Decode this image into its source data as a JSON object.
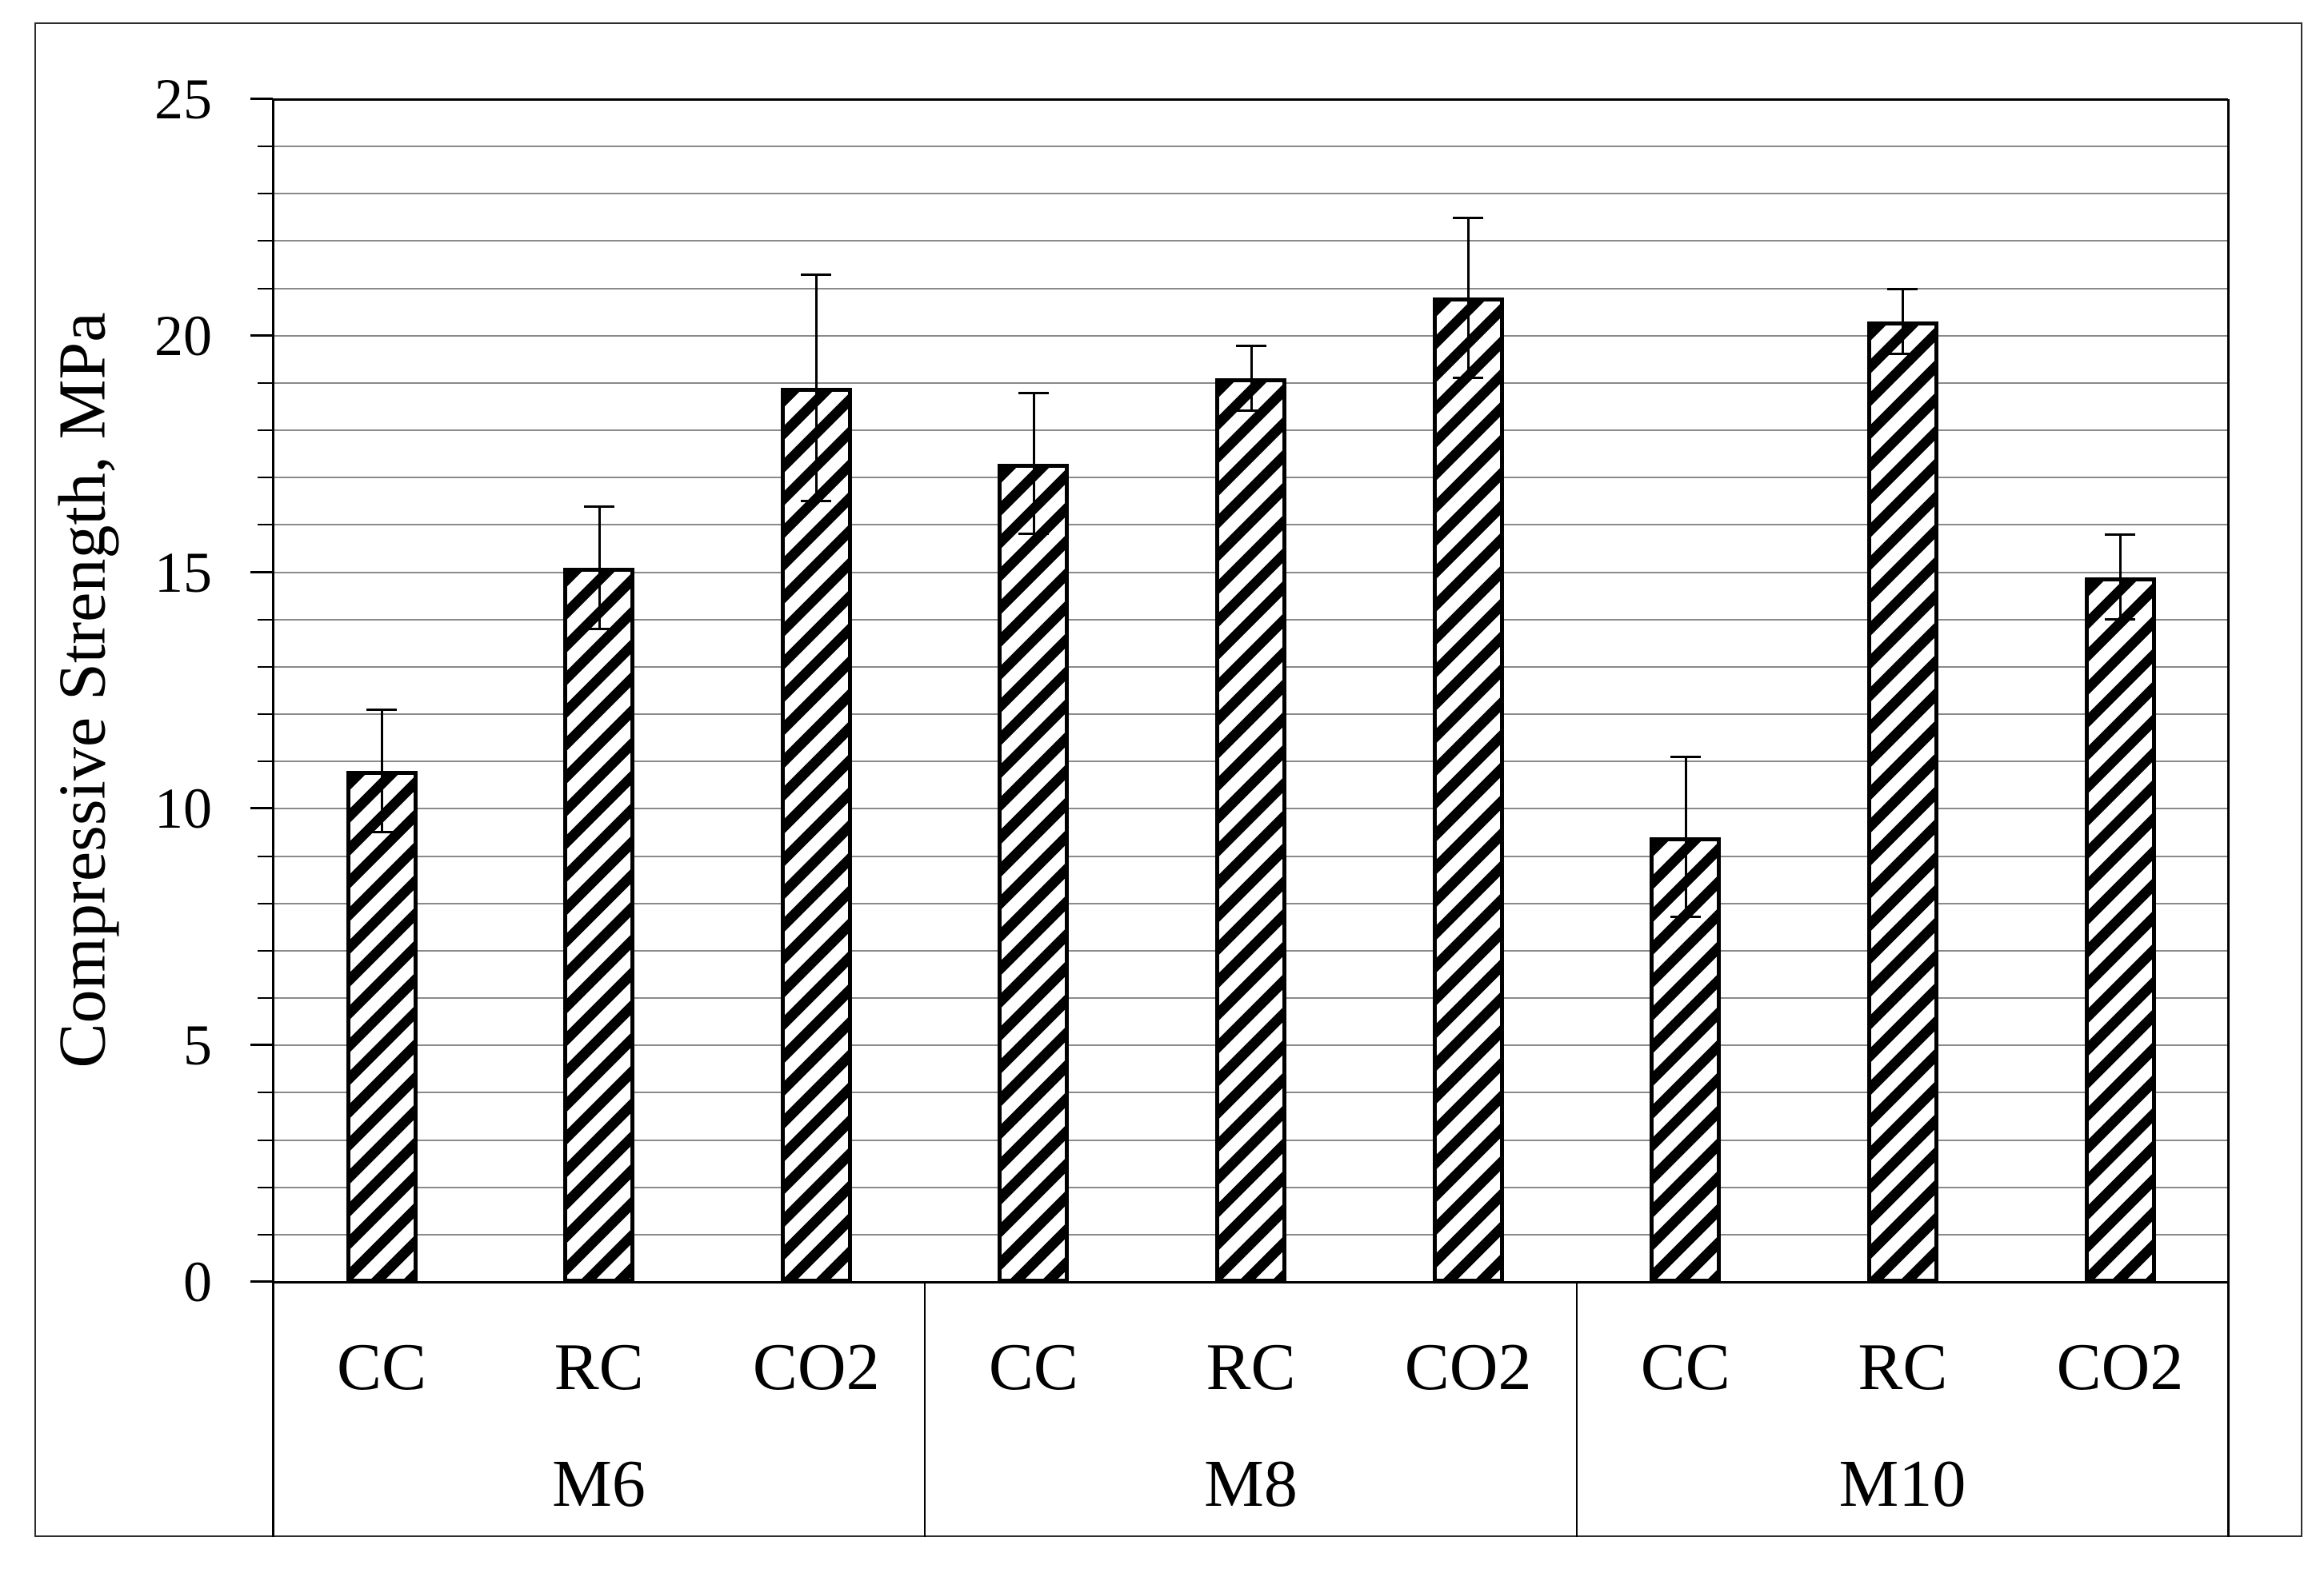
{
  "figure": {
    "y_axis": {
      "title": "Compressive Strength, MPa",
      "tick_labels": [
        "0",
        "5",
        "10",
        "15",
        "20",
        "25"
      ],
      "min": 0,
      "max": 25,
      "major_step": 5,
      "minor_step": 1
    },
    "groups": [
      {
        "label": "M6",
        "bars": [
          {
            "label": "CC",
            "value": 10.8,
            "err_hi": 12.1,
            "err_lo": 9.5
          },
          {
            "label": "RC",
            "value": 15.1,
            "err_hi": 16.4,
            "err_lo": 13.8
          },
          {
            "label": "CO2",
            "value": 18.9,
            "err_hi": 21.3,
            "err_lo": 16.5
          }
        ]
      },
      {
        "label": "M8",
        "bars": [
          {
            "label": "CC",
            "value": 17.3,
            "err_hi": 18.8,
            "err_lo": 15.8
          },
          {
            "label": "RC",
            "value": 19.1,
            "err_hi": 19.8,
            "err_lo": 18.4
          },
          {
            "label": "CO2",
            "value": 20.8,
            "err_hi": 22.5,
            "err_lo": 19.1
          }
        ]
      },
      {
        "label": "M10",
        "bars": [
          {
            "label": "CC",
            "value": 9.4,
            "err_hi": 11.1,
            "err_lo": 7.7
          },
          {
            "label": "RC",
            "value": 20.3,
            "err_hi": 21.0,
            "err_lo": 19.6
          },
          {
            "label": "CO2",
            "value": 14.9,
            "err_hi": 15.8,
            "err_lo": 14.0
          }
        ]
      }
    ],
    "colors": {
      "gridline": "#8a8a8a",
      "axis": "#000000",
      "bar_hatch": "#000000",
      "bar_background": "#ffffff",
      "outer_border": "#2e2e2e"
    }
  },
  "chart_data": {
    "type": "bar",
    "title": "",
    "xlabel": "",
    "ylabel": "Compressive Strength, MPa",
    "ylim": [
      0,
      25
    ],
    "y_major_ticks": [
      0,
      5,
      10,
      15,
      20,
      25
    ],
    "y_minor_gridline_step": 1,
    "grid": "horizontal gray gridlines every 1 MPa",
    "legend": "none",
    "bar_style": "white bars with black diagonal hatch (/) and black borders, black error bars with caps",
    "group_labels": [
      "M6",
      "M8",
      "M10"
    ],
    "categories": [
      "M6 CC",
      "M6 RC",
      "M6 CO2",
      "M8 CC",
      "M8 RC",
      "M8 CO2",
      "M10 CC",
      "M10 RC",
      "M10 CO2"
    ],
    "values": [
      10.8,
      15.1,
      18.9,
      17.3,
      19.1,
      20.8,
      9.4,
      20.3,
      14.9
    ],
    "error_up": [
      1.3,
      1.3,
      2.4,
      1.5,
      0.7,
      1.7,
      1.7,
      0.7,
      0.9
    ],
    "error_down": [
      1.3,
      1.3,
      2.4,
      1.5,
      0.7,
      1.7,
      1.7,
      0.7,
      0.9
    ]
  }
}
